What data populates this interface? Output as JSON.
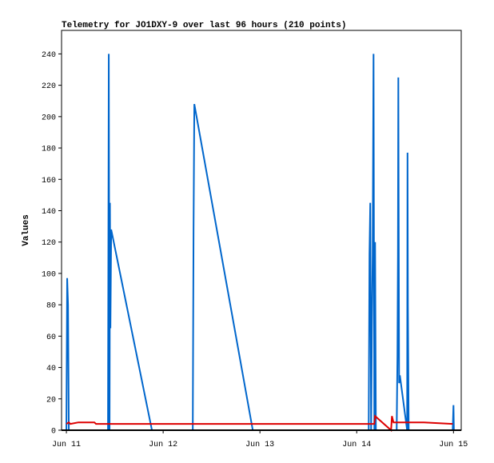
{
  "chart_data": {
    "type": "line",
    "title": "Telemetry for JO1DXY-9 over last 96 hours (210 points)",
    "y_label": "Values",
    "xlim": [
      10.95,
      15.08
    ],
    "ylim": [
      0,
      255
    ],
    "xticks": [
      {
        "value": 11,
        "label": "Jun 11"
      },
      {
        "value": 12,
        "label": "Jun 12"
      },
      {
        "value": 13,
        "label": "Jun 13"
      },
      {
        "value": 14,
        "label": "Jun 14"
      },
      {
        "value": 15,
        "label": "Jun 15"
      }
    ],
    "yticks": [
      0,
      20,
      40,
      60,
      80,
      100,
      120,
      140,
      160,
      180,
      200,
      220,
      240
    ],
    "series": [
      {
        "color": "#0066cc",
        "x": [
          11,
          11.008,
          11.017,
          11.025,
          11.43,
          11.438,
          11.446,
          11.45,
          11.455,
          11.463,
          11.884,
          12.306,
          12.314,
          12.322,
          12.926,
          14.124,
          14.132,
          14.14,
          14.149,
          14.157,
          14.165,
          14.174,
          14.182,
          14.19,
          14.198,
          14.413,
          14.421,
          14.426,
          14.43,
          14.438,
          14.446,
          14.521,
          14.525,
          14.529,
          14.537,
          14.992,
          15,
          15.004
        ],
        "values": [
          0,
          97,
          80,
          0,
          0,
          240,
          0,
          145,
          65,
          128,
          0,
          0,
          128,
          208,
          0,
          0,
          112,
          145,
          0,
          65,
          112,
          240,
          0,
          120,
          0,
          0,
          48,
          112,
          225,
          30,
          35,
          0,
          177,
          80,
          0,
          0,
          16,
          0
        ]
      },
      {
        "color": "#dd0000",
        "x": [
          11,
          11.025,
          11.041,
          11.124,
          11.289,
          11.306,
          14.182,
          14.19,
          14.355,
          14.364,
          14.38,
          14.694,
          14.992
        ],
        "values": [
          4,
          5,
          4,
          5,
          5,
          4,
          4,
          9,
          0,
          9,
          5,
          5,
          4
        ]
      }
    ]
  }
}
